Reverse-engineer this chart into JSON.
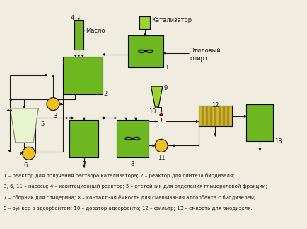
{
  "bg_color": "#f0ece0",
  "green_dark": "#5a9a18",
  "green_mid": "#6db820",
  "green_light": "#9cd430",
  "green_pale": "#c8e896",
  "yellow_pump": "#f0c020",
  "filter_yellow": "#d4b830",
  "filter_stripe": "#a89020",
  "line_color": "#1a1a1a",
  "red_color": "#cc0000",
  "catalyst_label": "Катализатор",
  "ethanol_label": "Этиловый\nспирт",
  "oil_label": "Масло",
  "label_1": "1",
  "label_2": "2",
  "label_3": "3",
  "label_4": "4",
  "label_5": "5",
  "label_6": "6",
  "label_7": "7",
  "label_8": "8",
  "label_9": "9",
  "label_10": "10",
  "label_11": "11",
  "label_12": "12",
  "label_13": "13",
  "legend_lines": [
    "1 – реактор для получения раствора катализатора; 2 – реактор для синтеза биодизеля;",
    "3, 6, 11 – насосы; 4 – кавитационный реактор; 5 – отстойник для отделения глицероловой фракции;",
    "7 – сборник для глицерина; 8 – контактная ёмкость для смешивания адсорбента с биодизелем;",
    "9 – бункер з адсорбентом; 10 – дозатор адсорбента; 12 – фильтр; 13 – ёмкость для биодизеля."
  ]
}
